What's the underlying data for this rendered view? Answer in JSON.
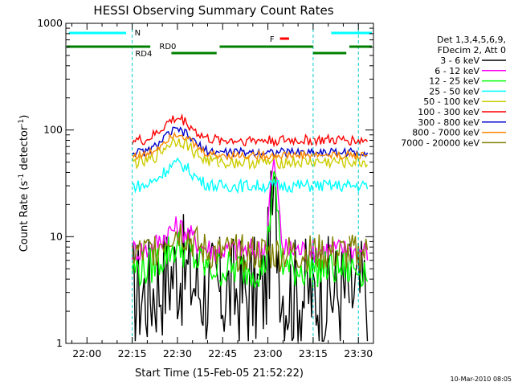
{
  "chart_data": {
    "type": "line",
    "title": "HESSI Observing Summary Count Rates",
    "xlabel": "Start Time (15-Feb-05 21:52:22)",
    "ylabel_main": "Count Rate (s",
    "ylabel_sup1": "-1",
    "ylabel_mid": " detector",
    "ylabel_sup2": "-1",
    "ylabel_end": ")",
    "y_scale": "log",
    "ylim": [
      1,
      1000
    ],
    "xlim_minutes": [
      -7,
      95
    ],
    "x_ticks": [
      {
        "min": 0,
        "label": "22:00"
      },
      {
        "min": 15,
        "label": "22:15"
      },
      {
        "min": 30,
        "label": "22:30"
      },
      {
        "min": 45,
        "label": "22:45"
      },
      {
        "min": 60,
        "label": "23:00"
      },
      {
        "min": 75,
        "label": "23:15"
      },
      {
        "min": 90,
        "label": "23:30"
      }
    ],
    "y_ticks": [
      {
        "v": 1,
        "label": "1"
      },
      {
        "v": 10,
        "label": "10"
      },
      {
        "v": 100,
        "label": "100"
      },
      {
        "v": 1000,
        "label": "1000"
      }
    ],
    "legend_header": [
      "Det 1,3,4,5,6,9,",
      "FDecim 2, Att 0"
    ],
    "series": [
      {
        "name": "3 - 6 keV",
        "color": "#000000"
      },
      {
        "name": "6 - 12 keV",
        "color": "#ff00ff"
      },
      {
        "name": "12 - 25 keV",
        "color": "#00ff00"
      },
      {
        "name": "25 - 50 keV",
        "color": "#00ffff"
      },
      {
        "name": "50 - 100 keV",
        "color": "#cccc00"
      },
      {
        "name": "100 - 300 keV",
        "color": "#ff0000"
      },
      {
        "name": "300 - 800 keV",
        "color": "#0000cc"
      },
      {
        "name": "800 - 7000 keV",
        "color": "#ff8800"
      },
      {
        "name": "7000 - 20000 keV",
        "color": "#808000"
      }
    ],
    "segments": {
      "bar_labels": {
        "night": "N",
        "flare": "F",
        "rd0": "RD0",
        "rd4": "RD4"
      },
      "night_start_min": -7,
      "night_end_min": 15,
      "saa_min": [
        -7,
        15,
        75,
        90
      ]
    },
    "timestamp": "10-Mar-2010 08:05"
  }
}
